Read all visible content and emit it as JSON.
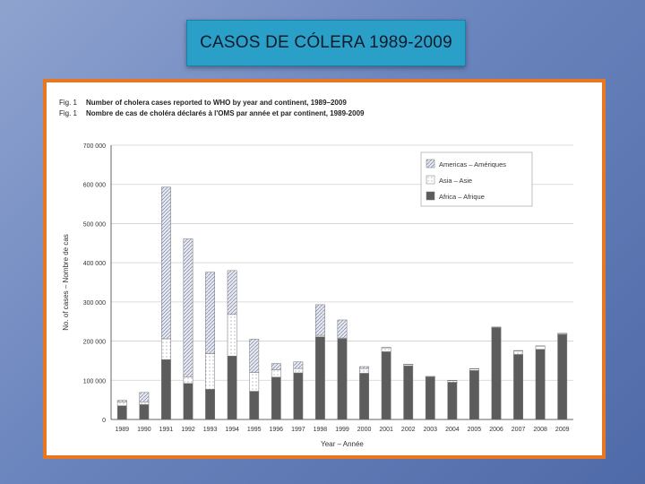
{
  "slide": {
    "title": "CASOS DE CÓLERA 1989-2009"
  },
  "figure": {
    "label_en": "Fig. 1",
    "label_fr": "Fig. 1",
    "caption_en": "Number of cholera cases reported to WHO by year and continent, 1989–2009",
    "caption_fr": "Nombre de cas de choléra déclarés à l'OMS par année et par continent, 1989-2009"
  },
  "chart_data": {
    "type": "bar",
    "stacked": true,
    "xlabel": "Year – Année",
    "ylabel": "No. of cases – Nombre de cas",
    "ylim": [
      0,
      700000
    ],
    "yticks": [
      0,
      100000,
      200000,
      300000,
      400000,
      500000,
      600000,
      700000
    ],
    "ytick_labels": [
      "0",
      "100 000",
      "200 000",
      "300 000",
      "400 000",
      "500 000",
      "600 000",
      "700 000"
    ],
    "grid": true,
    "legend_position": "top-right",
    "categories": [
      "1989",
      "1990",
      "1991",
      "1992",
      "1993",
      "1994",
      "1995",
      "1996",
      "1997",
      "1998",
      "1999",
      "2000",
      "2001",
      "2002",
      "2003",
      "2004",
      "2005",
      "2006",
      "2007",
      "2008",
      "2009"
    ],
    "series": [
      {
        "name": "Africa – Afrique",
        "color": "#595959",
        "values": [
          35000,
          38000,
          153000,
          92000,
          77000,
          162000,
          72000,
          108000,
          119000,
          211000,
          206000,
          118000,
          173000,
          137000,
          108000,
          95000,
          125000,
          234000,
          166000,
          179000,
          217000
        ]
      },
      {
        "name": "Asia – Asie",
        "color": "#ffffff",
        "values": [
          10000,
          7000,
          53000,
          17000,
          91000,
          106000,
          48000,
          19000,
          11000,
          4000,
          2000,
          12000,
          10000,
          3000,
          1000,
          4000,
          4000,
          1000,
          9000,
          8000,
          2000
        ]
      },
      {
        "name": "Americas – Amériques",
        "color": "#bcc4d6",
        "values": [
          4000,
          24000,
          387000,
          352000,
          208000,
          112000,
          85000,
          16000,
          17000,
          78000,
          46000,
          5000,
          1000,
          1000,
          1000,
          1000,
          1000,
          1000,
          1000,
          1000,
          1000
        ]
      }
    ]
  }
}
